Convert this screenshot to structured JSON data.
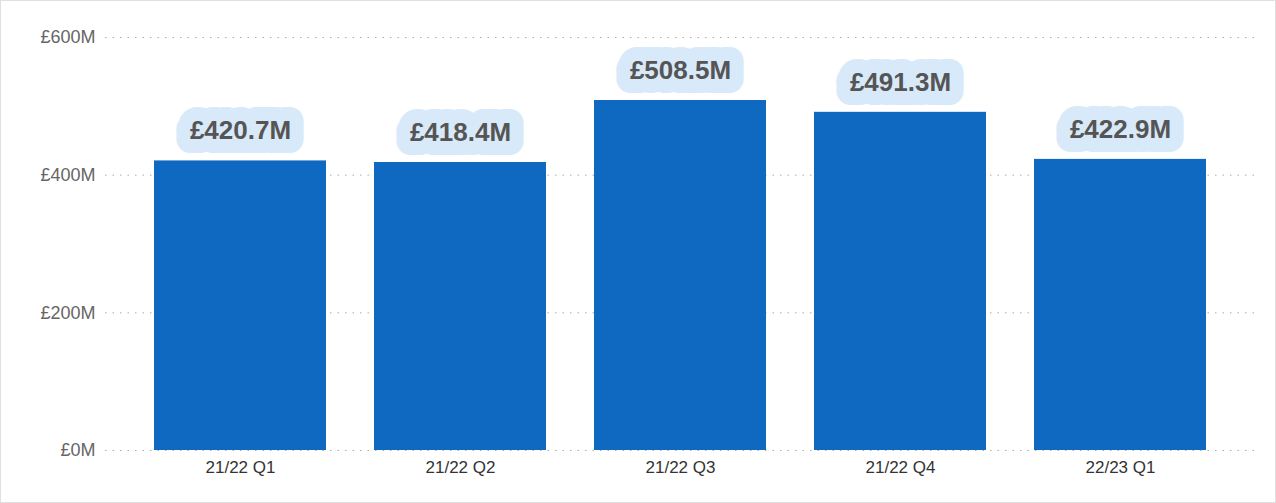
{
  "chart_data": {
    "type": "bar",
    "categories": [
      "21/22 Q1",
      "21/22 Q2",
      "21/22 Q3",
      "21/22 Q4",
      "22/23 Q1"
    ],
    "values": [
      420.7,
      418.4,
      508.5,
      491.3,
      422.9
    ],
    "value_labels": [
      "£420.7M",
      "£418.4M",
      "£508.5M",
      "£491.3M",
      "£422.9M"
    ],
    "color": "#0f69c0",
    "ylim": [
      0,
      600
    ],
    "yticks": [
      {
        "value": 0,
        "label": "£0M"
      },
      {
        "value": 200,
        "label": "£200M"
      },
      {
        "value": 400,
        "label": "£400M"
      },
      {
        "value": 600,
        "label": "£600M"
      }
    ],
    "grid": true,
    "data_labels": true
  }
}
